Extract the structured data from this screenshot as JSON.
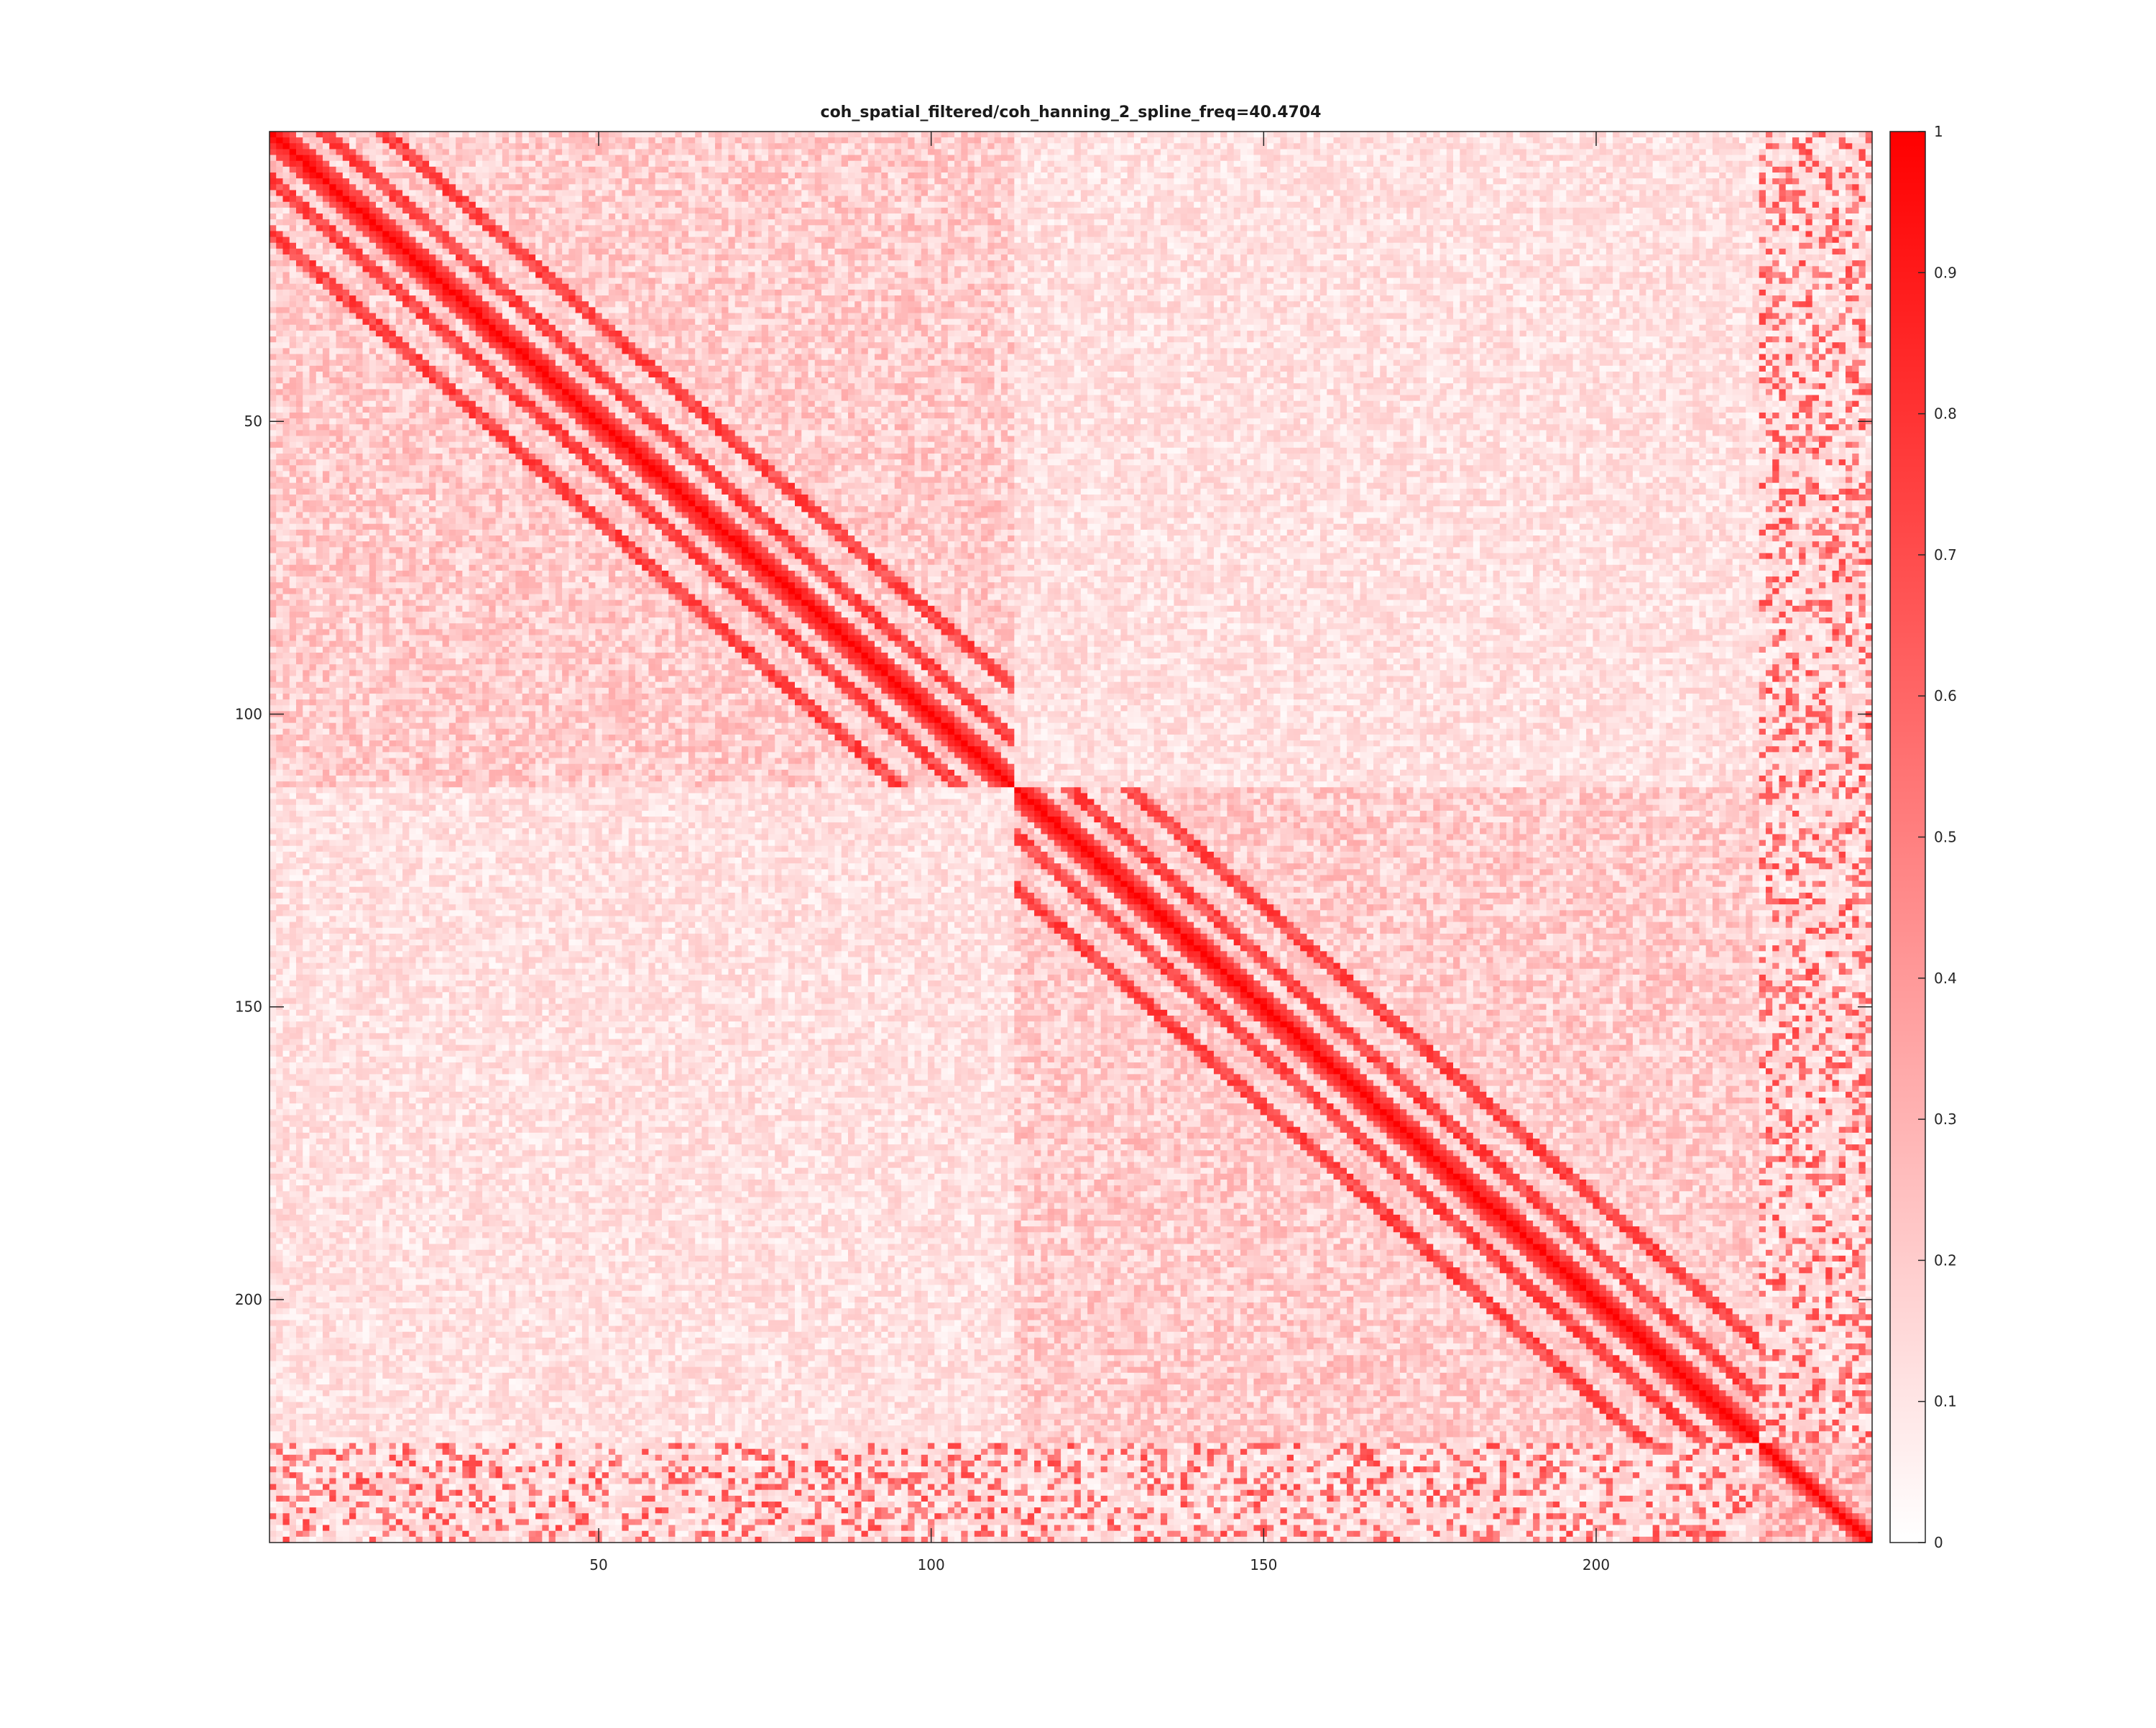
{
  "chart_data": {
    "type": "heatmap",
    "title": "coh_spatial_filtered/coh_hanning_2_spline_freq=40.4704",
    "xlabel": "",
    "ylabel": "",
    "n_rows": 241,
    "n_cols": 241,
    "xlim": [
      0.5,
      241.5
    ],
    "ylim": [
      0.5,
      241.5
    ],
    "y_reversed": true,
    "x_ticks": [
      50,
      100,
      150,
      200
    ],
    "x_tick_labels": [
      "50",
      "100",
      "150",
      "200"
    ],
    "y_ticks": [
      50,
      100,
      150,
      200
    ],
    "y_tick_labels": [
      "50",
      "100",
      "150",
      "200"
    ],
    "colorbar": {
      "min": 0,
      "max": 1,
      "ticks": [
        0,
        0.1,
        0.2,
        0.3,
        0.4,
        0.5,
        0.6,
        0.7,
        0.8,
        0.9,
        1
      ],
      "tick_labels": [
        "0",
        "0.1",
        "0.2",
        "0.3",
        "0.4",
        "0.5",
        "0.6",
        "0.7",
        "0.8",
        "0.9",
        "1"
      ],
      "color_low": "#ffffff",
      "color_high": "#ff0000"
    },
    "blocks": [
      {
        "name": "block-1",
        "start": 1,
        "end": 112,
        "diagonal": 1.0,
        "near_diagonal": [
          0.95,
          0.85,
          0.75
        ],
        "off_diagonal_band_offsets": [
          8,
          17
        ],
        "off_diagonal_band_value": 0.85,
        "background": 0.2
      },
      {
        "name": "block-2",
        "start": 113,
        "end": 224,
        "diagonal": 1.0,
        "near_diagonal": [
          0.95,
          0.85,
          0.75
        ],
        "off_diagonal_band_offsets": [
          8,
          17
        ],
        "off_diagonal_band_value": 0.85,
        "background": 0.2
      },
      {
        "name": "block-3",
        "start": 225,
        "end": 241,
        "diagonal": 1.0,
        "near_diagonal": [
          0.9,
          0.7
        ],
        "background": 0.3
      }
    ],
    "cross_block_background": 0.12,
    "edge_stripe_rows": [
      225,
      241
    ],
    "edge_stripe_value": 0.75
  },
  "colors": {
    "axis": "#262626",
    "background": "#ffffff"
  }
}
